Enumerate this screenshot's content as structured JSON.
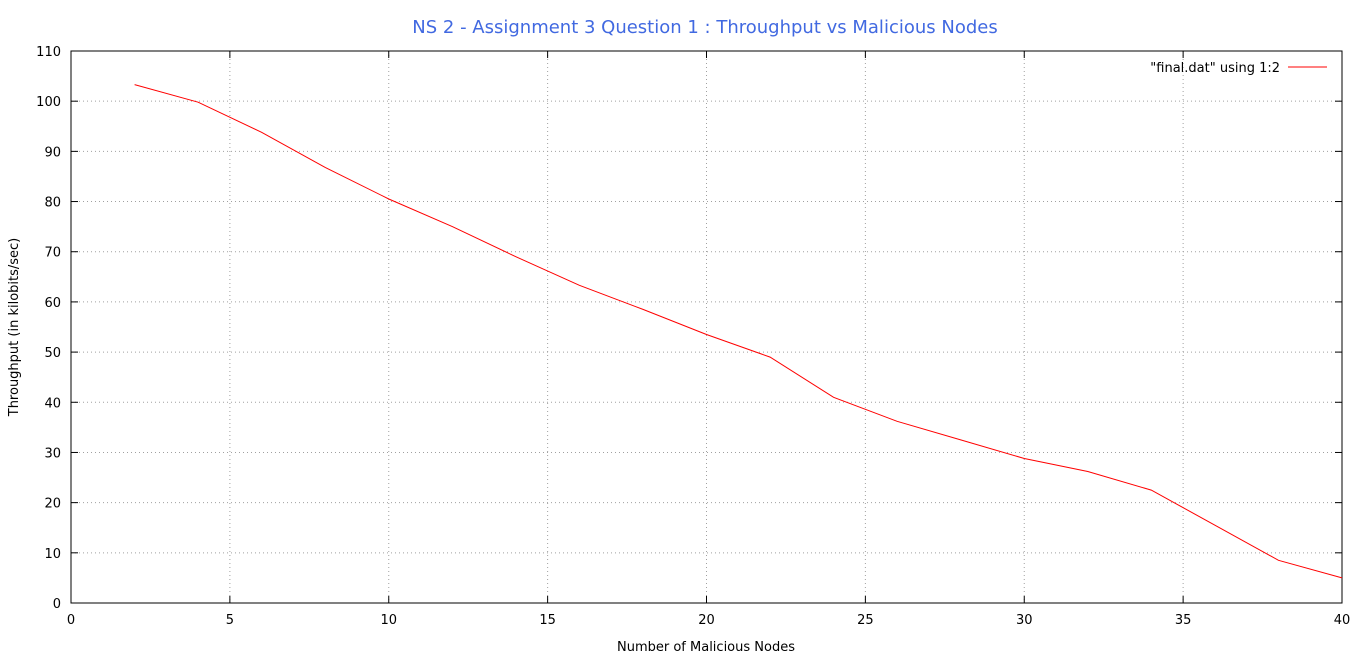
{
  "chart_data": {
    "type": "line",
    "title": "NS 2 - Assignment 3 Question 1 : Throughput vs Malicious Nodes",
    "xlabel": "Number of Malicious Nodes",
    "ylabel": "Throughput (in kilobits/sec)",
    "xlim": [
      0,
      40
    ],
    "ylim": [
      0,
      110
    ],
    "xticks": [
      "0",
      "5",
      "10",
      "15",
      "20",
      "25",
      "30",
      "35",
      "40"
    ],
    "yticks": [
      "0",
      "10",
      "20",
      "30",
      "40",
      "50",
      "60",
      "70",
      "80",
      "90",
      "100",
      "110"
    ],
    "grid": true,
    "legend_position": "top-right",
    "series": [
      {
        "name": "\"final.dat\" using 1:2",
        "color": "#ff0000",
        "x": [
          2,
          4,
          6,
          8,
          10,
          12,
          14,
          16,
          18,
          20,
          22,
          24,
          26,
          28,
          30,
          32,
          34,
          36,
          38,
          40
        ],
        "y": [
          103.3,
          99.8,
          93.8,
          86.8,
          80.5,
          75.0,
          69.0,
          63.3,
          58.5,
          53.5,
          49.0,
          41.0,
          36.2,
          32.5,
          28.8,
          26.2,
          22.5,
          15.5,
          8.5,
          5.0
        ]
      }
    ]
  },
  "style": {
    "title_color": "#4169e1",
    "grid_color": "#a0a0a0",
    "axis_color": "#000000"
  }
}
